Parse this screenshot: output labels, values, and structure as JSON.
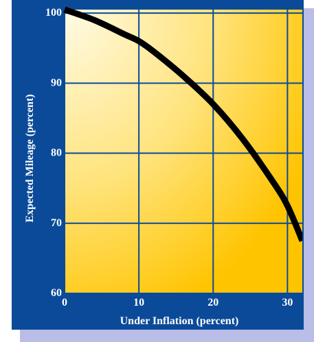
{
  "chart_data": {
    "type": "line",
    "title": "",
    "xlabel": "Under Inflation (percent)",
    "ylabel": "Expected Mileage (percent)",
    "xlim": [
      0,
      32
    ],
    "ylim": [
      60,
      100.5
    ],
    "x_ticks": [
      0,
      10,
      20,
      30
    ],
    "y_ticks": [
      60,
      70,
      80,
      90,
      100
    ],
    "grid": true,
    "legend": "none",
    "series": [
      {
        "x": [
          0,
          4,
          8,
          10,
          12,
          16,
          20,
          24,
          28,
          30,
          32
        ],
        "y": [
          100.5,
          99,
          97,
          96,
          94.5,
          91,
          87,
          82,
          76,
          72.5,
          67.5
        ],
        "color": "#000000"
      }
    ],
    "colors": {
      "frame": "#0a4a99",
      "gridline": "#0a4a99",
      "plot_gradient_light": "#fffbe6",
      "plot_gradient_mid": "#ffe37a",
      "plot_gradient_dark": "#ffc400",
      "shadow": "#b9bde8",
      "curve": "#000000",
      "text": "#ffffff"
    }
  }
}
